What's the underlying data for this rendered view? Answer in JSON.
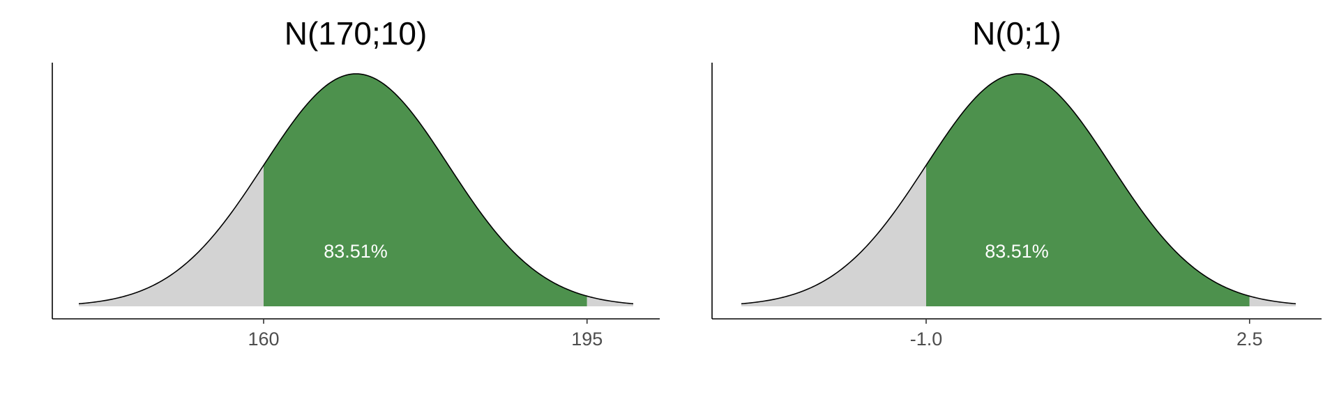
{
  "chart_data": [
    {
      "type": "area",
      "title": "N(170;10)",
      "distribution": {
        "mean": 170,
        "sd": 10
      },
      "xlim": [
        140,
        200
      ],
      "shaded_interval": [
        160,
        195
      ],
      "shaded_probability_label": "83.51%",
      "x_ticks": [
        160,
        195
      ],
      "x_tick_labels": [
        "160",
        "195"
      ],
      "colors": {
        "shaded": "#4d914d",
        "tails": "#d3d3d3",
        "outline": "#000000"
      },
      "grid": false
    },
    {
      "type": "area",
      "title": "N(0;1)",
      "distribution": {
        "mean": 0,
        "sd": 1
      },
      "xlim": [
        -3,
        3
      ],
      "shaded_interval": [
        -1.0,
        2.5
      ],
      "shaded_probability_label": "83.51%",
      "x_ticks": [
        -1.0,
        2.5
      ],
      "x_tick_labels": [
        "-1.0",
        "2.5"
      ],
      "colors": {
        "shaded": "#4d914d",
        "tails": "#d3d3d3",
        "outline": "#000000"
      },
      "grid": false
    }
  ]
}
